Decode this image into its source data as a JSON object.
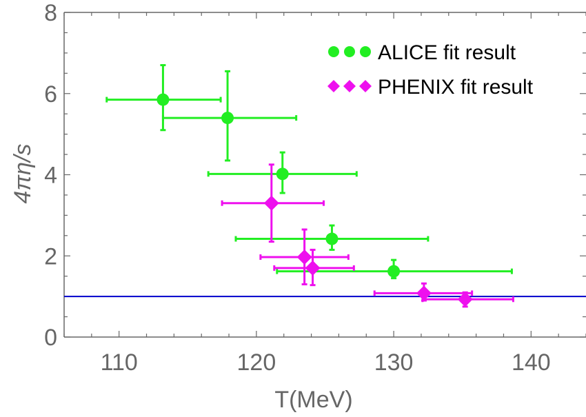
{
  "chart_data": {
    "type": "scatter",
    "xlabel": "T(MeV)",
    "ylabel": "4πη/s",
    "xlim": [
      106,
      144
    ],
    "ylim": [
      0,
      8
    ],
    "xticks": [
      110,
      120,
      130,
      140
    ],
    "yticks": [
      0,
      2,
      4,
      6,
      8
    ],
    "x_minor_step": 2,
    "y_minor_step": 0.5,
    "grid": false,
    "legend_position": "top-right",
    "reference_line": {
      "y": 1,
      "color": "#0000cc"
    },
    "series": [
      {
        "name": "ALICE fit result",
        "marker": "circle",
        "color": "#22ee22",
        "points": [
          {
            "x": 113.2,
            "y": 5.85,
            "xerr": [
              109.1,
              117.4
            ],
            "yerr": [
              5.1,
              6.7
            ]
          },
          {
            "x": 117.9,
            "y": 5.4,
            "xerr": [
              113.2,
              122.9
            ],
            "yerr": [
              4.35,
              6.55
            ]
          },
          {
            "x": 121.9,
            "y": 4.02,
            "xerr": [
              116.5,
              127.3
            ],
            "yerr": [
              3.55,
              4.55
            ]
          },
          {
            "x": 125.5,
            "y": 2.42,
            "xerr": [
              118.5,
              132.5
            ],
            "yerr": [
              2.15,
              2.75
            ]
          },
          {
            "x": 130.0,
            "y": 1.62,
            "xerr": [
              121.5,
              138.6
            ],
            "yerr": [
              1.45,
              1.9
            ]
          }
        ]
      },
      {
        "name": "PHENIX fit result",
        "marker": "diamond",
        "color": "#ee10ee",
        "points": [
          {
            "x": 121.1,
            "y": 3.3,
            "xerr": [
              117.5,
              124.9
            ],
            "yerr": [
              2.35,
              4.25
            ]
          },
          {
            "x": 123.5,
            "y": 1.97,
            "xerr": [
              120.3,
              126.7
            ],
            "yerr": [
              1.3,
              2.65
            ]
          },
          {
            "x": 124.1,
            "y": 1.7,
            "xerr": [
              121.3,
              127.1
            ],
            "yerr": [
              1.28,
              2.15
            ]
          },
          {
            "x": 132.2,
            "y": 1.08,
            "xerr": [
              128.6,
              135.7
            ],
            "yerr": [
              0.9,
              1.32
            ]
          },
          {
            "x": 135.2,
            "y": 0.93,
            "xerr": [
              132.1,
              138.7
            ],
            "yerr": [
              0.75,
              1.1
            ]
          }
        ]
      }
    ]
  }
}
